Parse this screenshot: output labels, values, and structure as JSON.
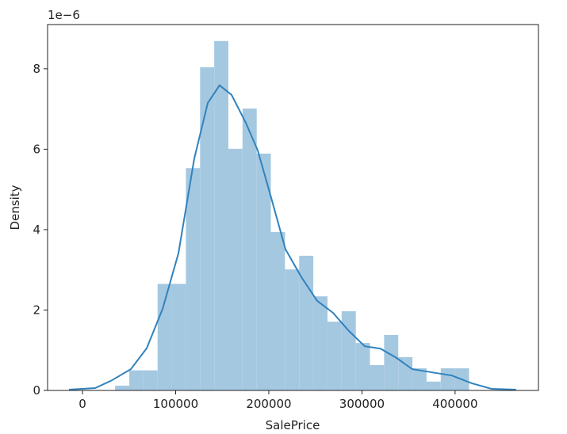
{
  "chart_data": {
    "type": "histogram",
    "xlabel": "SalePrice",
    "ylabel": "Density",
    "offset_text": "1e−6",
    "bins": [
      35000,
      50200,
      65400,
      80600,
      95800,
      111000,
      126200,
      141400,
      156600,
      171800,
      187000,
      202200,
      217400,
      232600,
      247800,
      263000,
      278200,
      293400,
      308600,
      323800,
      339000,
      354200,
      369400,
      384600,
      399800,
      415000
    ],
    "values": [
      0.12,
      0.5,
      0.5,
      2.65,
      2.65,
      5.53,
      8.04,
      8.69,
      6.01,
      7.01,
      5.89,
      3.94,
      3.01,
      3.35,
      2.34,
      1.71,
      1.97,
      1.18,
      0.63,
      1.38,
      0.83,
      0.55,
      0.22,
      0.55,
      0.55
    ],
    "color": "#a5c8e1",
    "kde": {
      "x": [
        -14500,
        13600,
        30600,
        51900,
        68900,
        86000,
        103000,
        120000,
        134500,
        147200,
        160000,
        175300,
        188100,
        202600,
        217900,
        234900,
        251900,
        268900,
        286000,
        303000,
        320000,
        337000,
        354000,
        375300,
        396600,
        417900,
        439100,
        465500
      ],
      "values": [
        0.02,
        0.06,
        0.24,
        0.53,
        1.05,
        2.03,
        3.41,
        5.77,
        7.15,
        7.59,
        7.35,
        6.66,
        5.97,
        4.79,
        3.51,
        2.82,
        2.23,
        1.93,
        1.48,
        1.1,
        1.04,
        0.81,
        0.53,
        0.45,
        0.37,
        0.18,
        0.04,
        0.02
      ],
      "color": "#3182bd"
    },
    "xlim": [
      -37500,
      489500
    ],
    "ylim": [
      0,
      9.1
    ],
    "xticks": [
      0,
      100000,
      200000,
      300000,
      400000
    ],
    "yticks": [
      0,
      2,
      4,
      6,
      8
    ]
  }
}
